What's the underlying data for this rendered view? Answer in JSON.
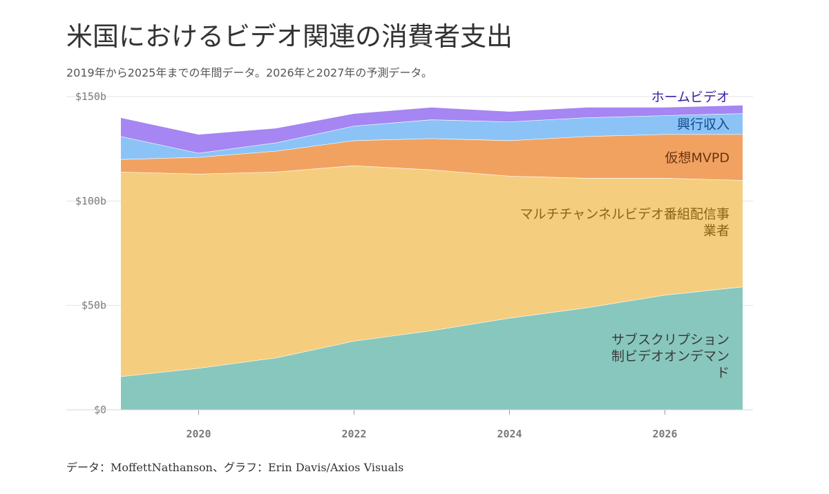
{
  "title": "米国におけるビデオ関連の消費者支出",
  "subtitle": "2019年から2025年までの年間データ。2026年と2027年の予測データ。",
  "source": "データ：MoffettNathanson、グラフ：Erin Davis/Axios Visuals",
  "chart_data": {
    "type": "area",
    "stacked": true,
    "title": "米国におけるビデオ関連の消費者支出",
    "subtitle": "2019年から2025年までの年間データ。2026年と2027年の予測データ。",
    "xlabel": "",
    "ylabel": "",
    "x": [
      2019,
      2020,
      2021,
      2022,
      2023,
      2024,
      2025,
      2026,
      2027
    ],
    "xlim": [
      2019,
      2027
    ],
    "ylim": [
      0,
      150
    ],
    "x_ticks": [
      {
        "value": 2020,
        "label": "2020"
      },
      {
        "value": 2022,
        "label": "2022"
      },
      {
        "value": 2024,
        "label": "2024"
      },
      {
        "value": 2026,
        "label": "2026"
      }
    ],
    "y_ticks": [
      {
        "value": 0,
        "label": "$0"
      },
      {
        "value": 50,
        "label": "$50b"
      },
      {
        "value": 100,
        "label": "$100b"
      },
      {
        "value": 150,
        "label": "$150b"
      }
    ],
    "grid": true,
    "series": [
      {
        "key": "svod",
        "name": "サブスクリプション制ビデオオンデマンド",
        "label_lines": [
          "サブスクリプション",
          "制ビデオオンデマン",
          "ド"
        ],
        "color": "#88c7bd",
        "label_color": "#3a3a3a",
        "label_value": 26,
        "values": [
          16,
          20,
          25,
          33,
          38,
          44,
          49,
          55,
          59
        ]
      },
      {
        "key": "mvpd",
        "name": "マルチチャンネルビデオ番組配信事業者",
        "label_lines": [
          "マルチチャンネルビデオ番組配信事",
          "業者"
        ],
        "color": "#f5cd7e",
        "label_color": "#8a6418",
        "label_value": 90,
        "values": [
          98,
          93,
          89,
          84,
          77,
          68,
          62,
          56,
          51
        ]
      },
      {
        "key": "vmvpd",
        "name": "仮想MVPD",
        "label_lines": [
          "仮想MVPD"
        ],
        "color": "#f1a261",
        "label_color": "#6a3410",
        "label_value": 121,
        "values": [
          6,
          8,
          10,
          12,
          15,
          17,
          20,
          21,
          22
        ]
      },
      {
        "key": "box_office",
        "name": "興行収入",
        "label_lines": [
          "興行収入"
        ],
        "color": "#8bc3f7",
        "label_color": "#124a8a",
        "label_value": 137,
        "values": [
          11,
          2,
          4,
          7,
          9,
          9,
          9,
          9,
          10
        ]
      },
      {
        "key": "home_video",
        "name": "ホームビデオ",
        "label_lines": [
          "ホームビデオ"
        ],
        "color": "#a586f2",
        "label_color": "#3a1aa8",
        "label_value": 150,
        "values": [
          9,
          9,
          7,
          6,
          6,
          5,
          5,
          4,
          4
        ]
      }
    ]
  }
}
